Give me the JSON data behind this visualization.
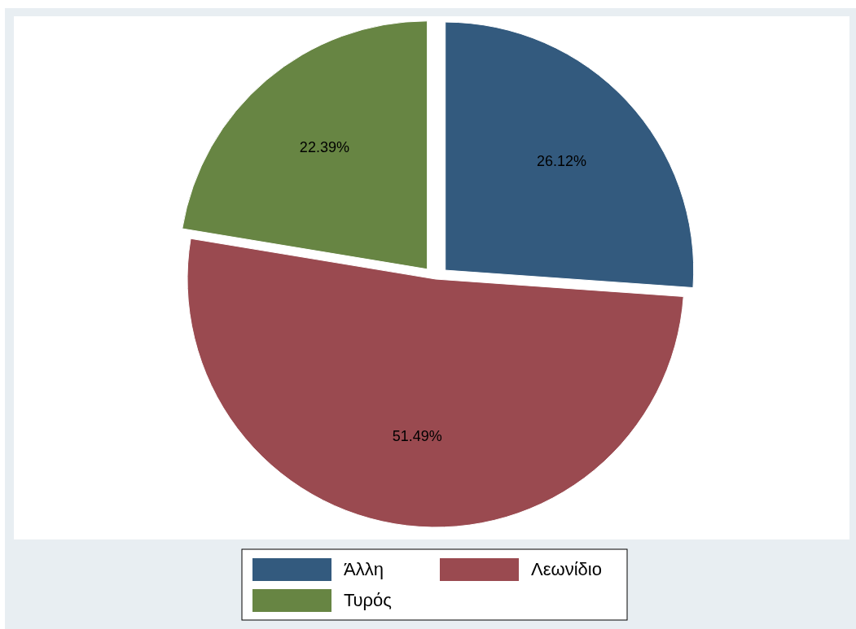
{
  "chart_data": {
    "type": "pie",
    "categories": [
      "Άλλη",
      "Λεωνίδιο",
      "Τυρός"
    ],
    "values": [
      26.12,
      51.49,
      22.39
    ],
    "colors": [
      "#335a7e",
      "#9a4a50",
      "#678543"
    ],
    "value_labels": [
      "26.12%",
      "51.49%",
      "22.39%"
    ],
    "legend": "bottom"
  }
}
